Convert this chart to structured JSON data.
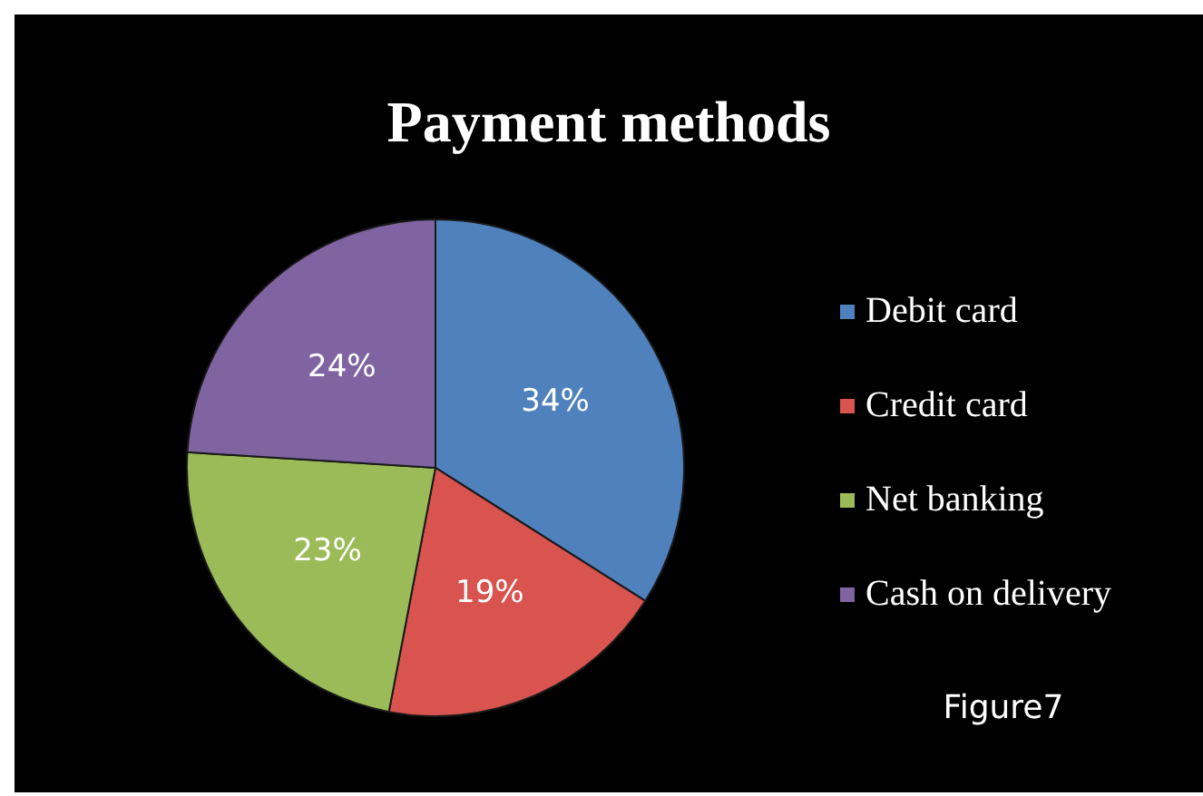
{
  "chart_data": {
    "type": "pie",
    "title": "Payment methods",
    "categories": [
      "Debit card",
      "Credit card",
      "Net banking",
      "Cash on delivery"
    ],
    "values": [
      34,
      19,
      23,
      24
    ],
    "value_labels": [
      "34%",
      "19%",
      "23%",
      "24%"
    ],
    "colors": [
      "#4f81bd",
      "#d9534f",
      "#9bbb59",
      "#8064a2"
    ],
    "legend": "right",
    "annotations": [
      "Figure7"
    ]
  }
}
